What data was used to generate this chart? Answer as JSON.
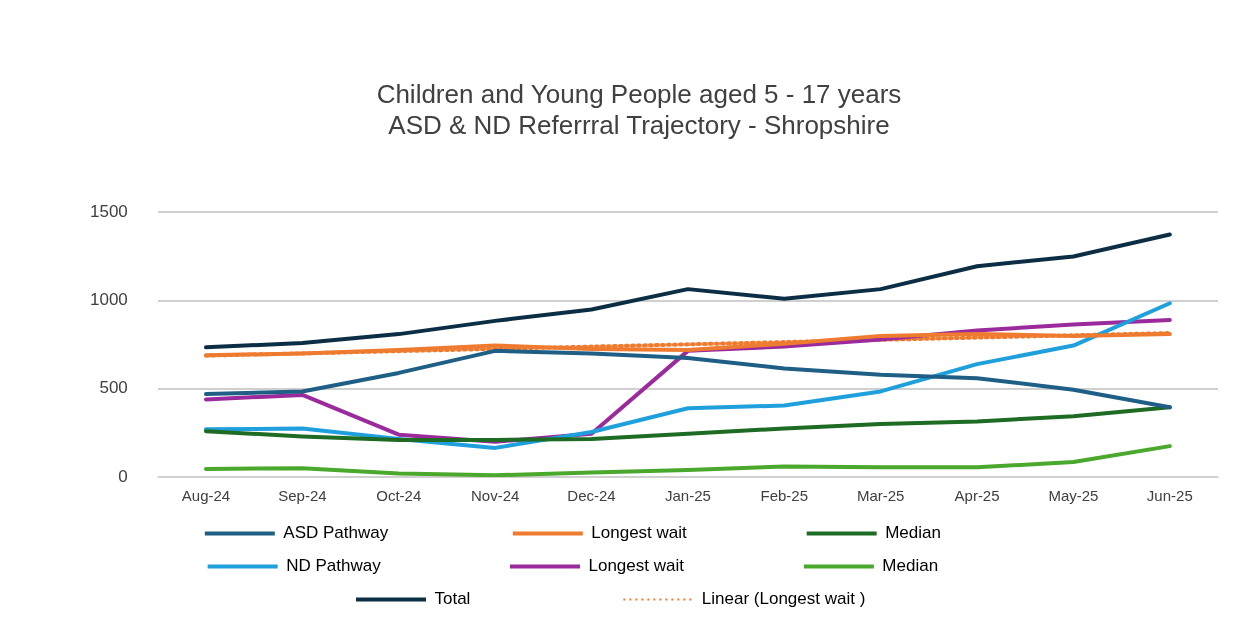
{
  "chart_data": {
    "type": "line",
    "title": "Children and Young People aged 5 - 17 years\nASD & ND Referrral Trajectory - Shropshire",
    "categories": [
      "Aug-24",
      "Sep-24",
      "Oct-24",
      "Nov-24",
      "Dec-24",
      "Jan-25",
      "Feb-25",
      "Mar-25",
      "Apr-25",
      "May-25",
      "Jun-25"
    ],
    "ylim": [
      0,
      1500
    ],
    "yticks": [
      0,
      500,
      1000,
      1500
    ],
    "grid": "y",
    "legend": "bottom",
    "marker": "none",
    "line_style": "solid",
    "series": [
      {
        "name": "ASD Pathway",
        "color": "#1f5f85",
        "values": [
          470,
          485,
          590,
          715,
          700,
          675,
          615,
          580,
          560,
          495,
          395
        ]
      },
      {
        "name": "Longest wait",
        "color": "#ee7b30",
        "values": [
          690,
          700,
          720,
          745,
          725,
          720,
          755,
          800,
          810,
          800,
          810
        ]
      },
      {
        "name": "Median",
        "color": "#1e6b24",
        "values": [
          260,
          230,
          210,
          210,
          215,
          245,
          275,
          300,
          315,
          345,
          395
        ]
      },
      {
        "name": "ND Pathway",
        "color": "#1fa0dc",
        "values": [
          270,
          275,
          215,
          165,
          255,
          390,
          405,
          485,
          640,
          745,
          985
        ]
      },
      {
        "name": "Longest wait",
        "color": "#9b2b9c",
        "values": [
          440,
          465,
          240,
          200,
          245,
          715,
          740,
          780,
          830,
          865,
          890
        ]
      },
      {
        "name": "Median",
        "color": "#4aa82c",
        "values": [
          45,
          50,
          20,
          10,
          25,
          40,
          60,
          55,
          55,
          85,
          175
        ]
      },
      {
        "name": "Total",
        "color": "#0c2e45",
        "values": [
          735,
          760,
          810,
          885,
          950,
          1065,
          1010,
          1065,
          1195,
          1250,
          1375
        ]
      },
      {
        "name": "Linear (Longest wait )",
        "type": "line",
        "line_style": "dotted",
        "color": "#ee7b30",
        "x": [
          "Aug-24",
          "Jun-25"
        ],
        "values": [
          688,
          816
        ]
      }
    ]
  }
}
